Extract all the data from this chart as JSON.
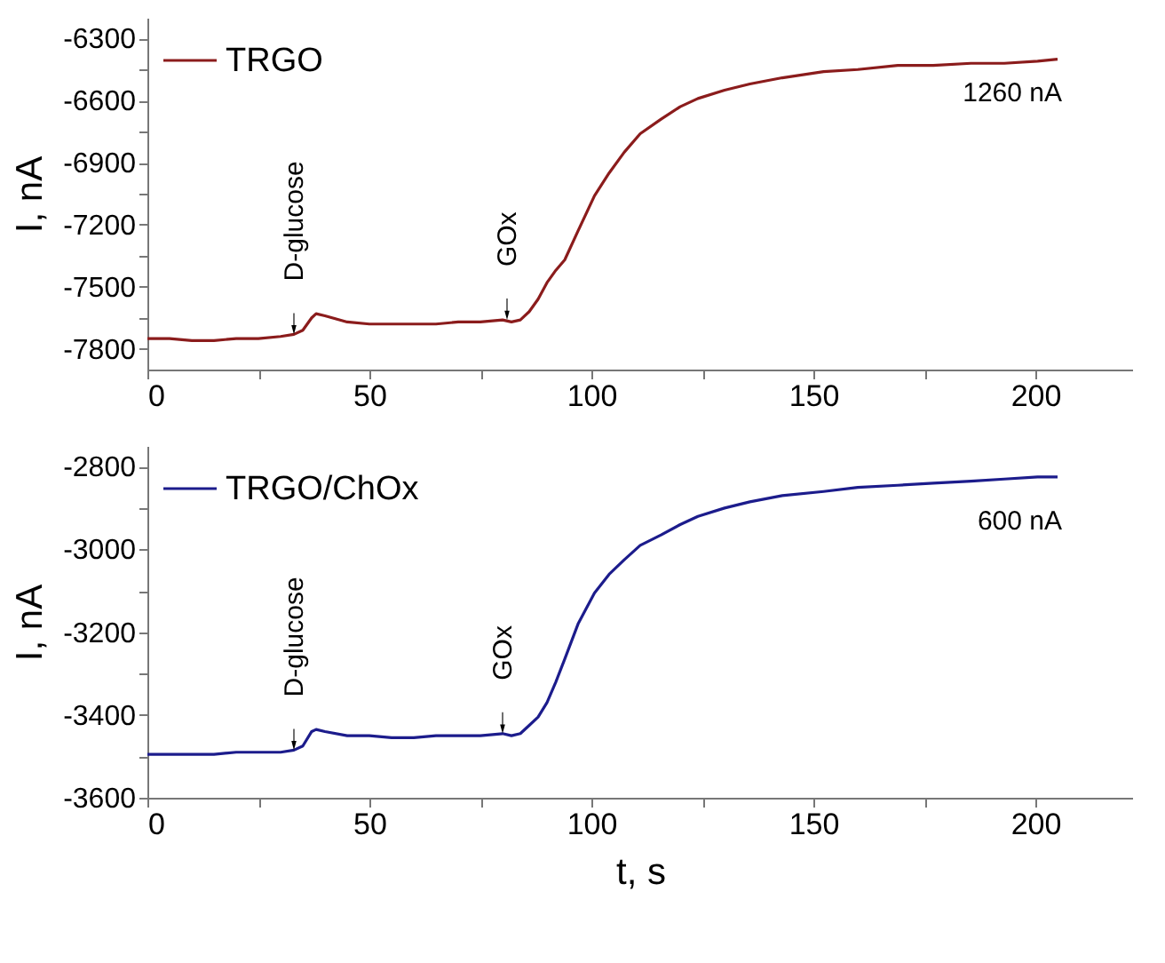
{
  "chart_data": [
    {
      "type": "line",
      "ylabel": "I, nA",
      "legend": "top left",
      "grid": false,
      "xlim": [
        0,
        222
      ],
      "ylim": [
        -7900,
        -6200
      ],
      "xticks": [
        0,
        {
          "value": 25,
          "label": null
        },
        50,
        {
          "value": 75,
          "label": null
        },
        100,
        {
          "value": 125,
          "label": null
        },
        150,
        {
          "value": 175,
          "label": null
        },
        200
      ],
      "yticks": [
        -7800,
        {
          "value": -7650,
          "label": null
        },
        -7500,
        {
          "value": -7350,
          "label": null
        },
        -7200,
        {
          "value": -7050,
          "label": null
        },
        -6900,
        {
          "value": -6750,
          "label": null
        },
        -6600,
        {
          "value": -6450,
          "label": null
        },
        -6300
      ],
      "annotations": [
        {
          "text": "D-glucose",
          "x": 33,
          "y": -7730
        },
        {
          "text": "GOx",
          "x": 81,
          "y": -7660
        },
        "1260 nA"
      ],
      "x": [
        0,
        5,
        10,
        15,
        20,
        25,
        30,
        33,
        35,
        37,
        38,
        40,
        45,
        50,
        55,
        60,
        65,
        70,
        75,
        80,
        82,
        84,
        86,
        88,
        90,
        92,
        94,
        97,
        100.7,
        104,
        107.4,
        111,
        115.7,
        120,
        124,
        130,
        135.7,
        143,
        152.3,
        160,
        169,
        177,
        185.5,
        193,
        200.5,
        205
      ],
      "series": [
        {
          "name": "TRGO",
          "color": "#8b1c1c",
          "values": [
            -7750,
            -7750,
            -7760,
            -7760,
            -7750,
            -7750,
            -7740,
            -7730,
            -7710,
            -7650,
            -7630,
            -7640,
            -7670,
            -7680,
            -7680,
            -7680,
            -7680,
            -7670,
            -7670,
            -7660,
            -7670,
            -7660,
            -7620,
            -7560,
            -7480,
            -7420,
            -7370,
            -7230,
            -7060,
            -6950,
            -6850,
            -6760,
            -6690,
            -6630,
            -6590,
            -6550,
            -6520,
            -6490,
            -6460,
            -6450,
            -6430,
            -6430,
            -6420,
            -6420,
            -6410,
            -6400
          ]
        }
      ]
    },
    {
      "type": "line",
      "xlabel": "t, s",
      "ylabel": "I, nA",
      "legend": "top left",
      "grid": false,
      "xlim": [
        0,
        222
      ],
      "ylim": [
        -3600,
        -2750
      ],
      "xticks": [
        0,
        {
          "value": 25,
          "label": null
        },
        50,
        {
          "value": 75,
          "label": null
        },
        100,
        {
          "value": 125,
          "label": null
        },
        150,
        {
          "value": 175,
          "label": null
        },
        200
      ],
      "yticks": [
        -3600,
        {
          "value": -3500,
          "label": null
        },
        -3400,
        {
          "value": -3300,
          "label": null
        },
        -3200,
        {
          "value": -3100,
          "label": null
        },
        -3000,
        {
          "value": -2900,
          "label": null
        },
        -2800
      ],
      "annotations": [
        {
          "text": "D-glucose",
          "x": 33,
          "y": -3485
        },
        {
          "text": "GOx",
          "x": 80,
          "y": -3445
        },
        "600 nA"
      ],
      "x": [
        0,
        5,
        10,
        15,
        20,
        25,
        30,
        33,
        35,
        37,
        38,
        40,
        45,
        50,
        55,
        60,
        65,
        70,
        75,
        80,
        82,
        84,
        86,
        88,
        90,
        92,
        94,
        97,
        100.7,
        104,
        107.4,
        111,
        115.7,
        120,
        124,
        130,
        135.7,
        143,
        152.3,
        160,
        169,
        177,
        185.5,
        193,
        200.5,
        205
      ],
      "series": [
        {
          "name": "TRGO/ChOx",
          "color": "#1c1c8c",
          "values": [
            -3495,
            -3495,
            -3495,
            -3495,
            -3490,
            -3490,
            -3490,
            -3485,
            -3475,
            -3440,
            -3435,
            -3440,
            -3450,
            -3450,
            -3455,
            -3455,
            -3450,
            -3450,
            -3450,
            -3445,
            -3450,
            -3445,
            -3425,
            -3405,
            -3370,
            -3320,
            -3265,
            -3180,
            -3105,
            -3060,
            -3025,
            -2990,
            -2965,
            -2940,
            -2920,
            -2900,
            -2885,
            -2870,
            -2860,
            -2850,
            -2845,
            -2840,
            -2835,
            -2830,
            -2825,
            -2825
          ]
        }
      ]
    }
  ]
}
